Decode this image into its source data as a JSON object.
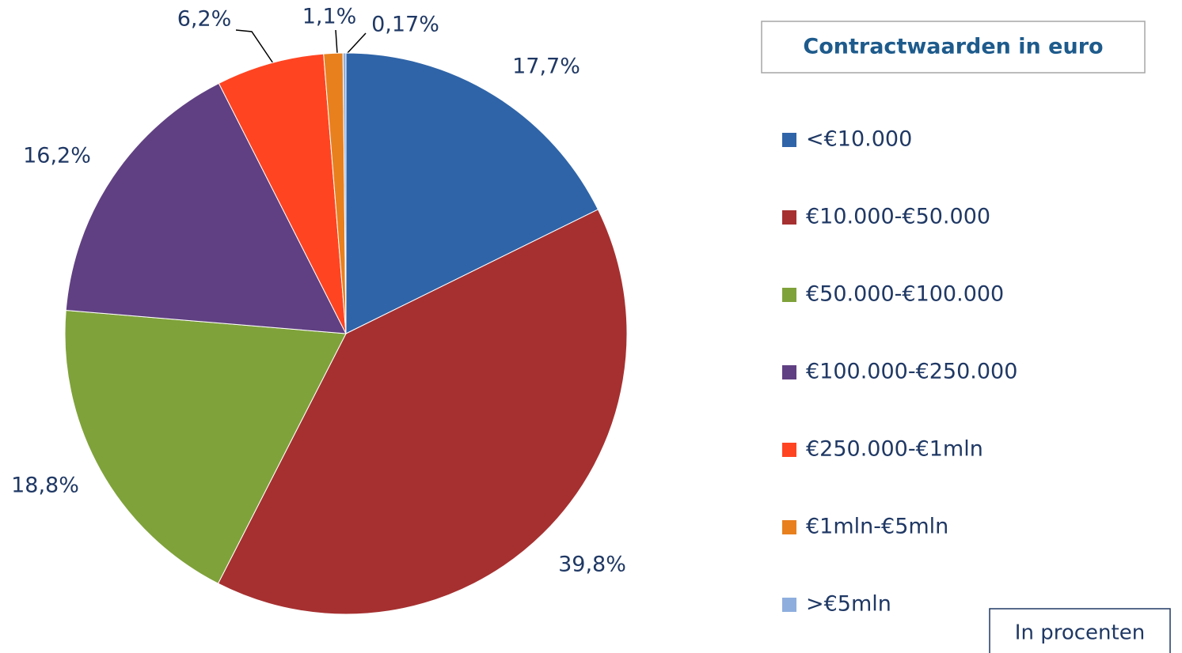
{
  "chart_data": {
    "type": "pie",
    "legend_title": "Contractwaarden in euro",
    "note": "In procenten",
    "categories": [
      "<€10.000",
      "€10.000-€50.000",
      "€50.000-€100.000",
      "€100.000-€250.000",
      "€250.000-€1mln",
      "€1mln-€5mln",
      ">€5mln"
    ],
    "values": [
      17.7,
      39.8,
      18.8,
      16.2,
      6.2,
      1.1,
      0.17
    ],
    "value_labels": [
      "17,7%",
      "39,8%",
      "18,8%",
      "16,2%",
      "6,2%",
      "1,1%",
      "0,17%"
    ],
    "colors": [
      "#2f64a8",
      "#a63030",
      "#7fa23a",
      "#604082",
      "#ff4422",
      "#e8801e",
      "#8eaede"
    ],
    "legend": "right"
  }
}
